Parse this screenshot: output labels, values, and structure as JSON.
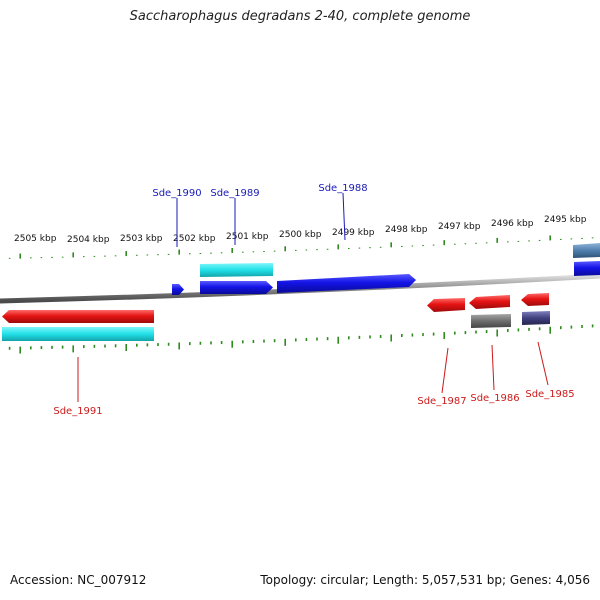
{
  "title": "Saccharophagus degradans 2-40, complete genome",
  "accession": "Accession: NC_007912",
  "summary": "Topology: circular; Length: 5,057,531 bp; Genes: 4,056",
  "colors": {
    "background": "#ffffff",
    "backbone": "#8a8a8a",
    "tick": "#2e8b1e",
    "forward_gene": "#1414e6",
    "forward_label": "#1a1ab8",
    "reverse_gene": "#e61414",
    "reverse_label": "#cc1a1a",
    "cds_cyan": "#22e0e8",
    "cds_gray": "#6e6e6e",
    "cds_navy": "#40407e",
    "cds_steelblue": "#4f7fae"
  },
  "scale_labels": [
    "2505 kbp",
    "2504 kbp",
    "2503 kbp",
    "2502 kbp",
    "2501 kbp",
    "2500 kbp",
    "2499 kbp",
    "2498 kbp",
    "2497 kbp",
    "2496 kbp",
    "2495 kbp"
  ],
  "gene_labels": {
    "forward": [
      "Sde_1990",
      "Sde_1989",
      "Sde_1988"
    ],
    "reverse": [
      "Sde_1991",
      "Sde_1987",
      "Sde_1986",
      "Sde_1985"
    ]
  },
  "genes": [
    {
      "name": "Sde_1990",
      "strand": "+",
      "track": "gene"
    },
    {
      "name": "Sde_1989",
      "strand": "+",
      "track": "gene"
    },
    {
      "name": "Sde_1989",
      "strand": "+",
      "track": "cds"
    },
    {
      "name": "Sde_1988",
      "strand": "+",
      "track": "gene"
    },
    {
      "name": "Sde_1991",
      "strand": "-",
      "track": "gene"
    },
    {
      "name": "Sde_1991",
      "strand": "-",
      "track": "cds"
    },
    {
      "name": "Sde_1987",
      "strand": "-",
      "track": "gene"
    },
    {
      "name": "Sde_1986",
      "strand": "-",
      "track": "gene"
    },
    {
      "name": "Sde_1986",
      "strand": "-",
      "track": "cds"
    },
    {
      "name": "Sde_1985",
      "strand": "-",
      "track": "gene"
    },
    {
      "name": "Sde_1985",
      "strand": "-",
      "track": "cds"
    }
  ]
}
